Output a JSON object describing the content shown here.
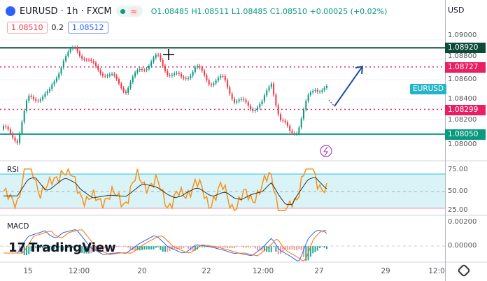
{
  "header": {
    "symbol": "EURUSD · 1h · FXCM",
    "ohlc": "O1.08485 H1.08511 L1.08485 C1.08510 +0.00025 (+0.02%)",
    "sell_price": "1.08510",
    "spread": "0.2",
    "buy_price": "1.08512",
    "currency": "USD"
  },
  "price_axis": {
    "ticks": [
      "1.09000",
      "1.08800",
      "1.08600",
      "1.08400",
      "1.08200",
      "1.08000"
    ]
  },
  "levels": [
    {
      "label": "1.08920",
      "value": 1.0892,
      "style": "solid",
      "color": "#0d4a3a"
    },
    {
      "label": "1.08727",
      "value": 1.08727,
      "style": "dotted",
      "color": "#e91e63"
    },
    {
      "label": "1.08299",
      "value": 1.08299,
      "style": "dotted",
      "color": "#e91e63"
    },
    {
      "label": "1.08050",
      "value": 1.0805,
      "style": "solid",
      "color": "#089981"
    }
  ],
  "symbol_tag": "EURUSD",
  "rsi": {
    "title": "RSI",
    "ticks": [
      "75.00",
      "50.00",
      "25.00"
    ]
  },
  "macd": {
    "title": "MACD",
    "ticks": [
      "0.00200",
      "0.00000"
    ]
  },
  "time_axis": [
    "15",
    "12:00",
    "20",
    "22",
    "12:00",
    "27",
    "29",
    "12:0"
  ],
  "logo": "TradingView",
  "chart_data": {
    "type": "candlestick",
    "ylim": [
      1.0798,
      1.0905
    ],
    "close_path": [
      1.081,
      1.08,
      1.084,
      1.0845,
      1.088,
      1.0892,
      1.0875,
      1.0862,
      1.085,
      1.087,
      1.0882,
      1.0868,
      1.086,
      1.0872,
      1.0858,
      1.086,
      1.084,
      1.0832,
      1.0835,
      1.0858,
      1.082,
      1.0806,
      1.081,
      1.084,
      1.0852,
      1.085
    ]
  },
  "colors": {
    "up": "#089981",
    "down": "#f23645",
    "rsi": "#f7931a",
    "macd": "#2962ff",
    "signal": "#ff6d00"
  }
}
